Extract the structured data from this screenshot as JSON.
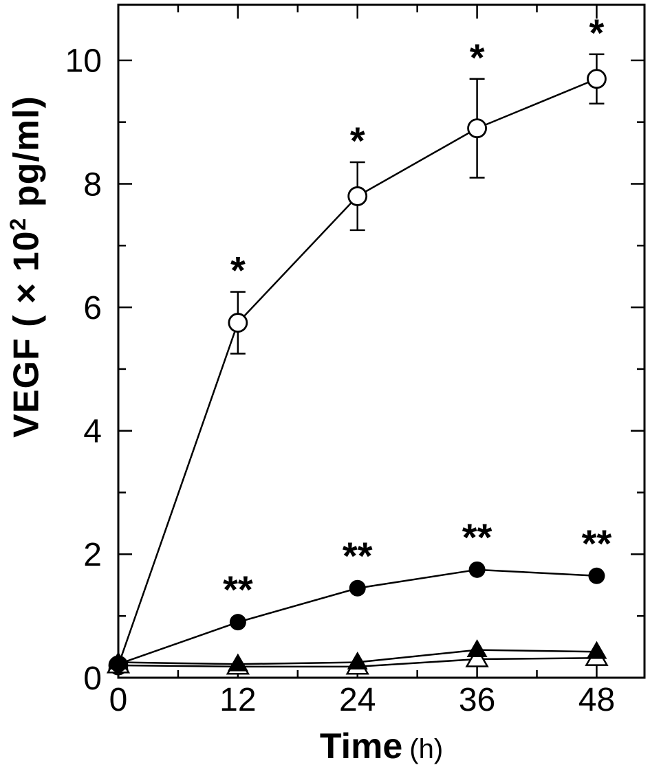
{
  "chart_data": {
    "type": "line",
    "title": "",
    "xlabel": {
      "main": "Time",
      "unit": "(h)"
    },
    "ylabel": {
      "prefix": "VEGF ( × 10",
      "sup": "2",
      "suffix": " pg/ml)"
    },
    "x": [
      0,
      12,
      24,
      36,
      48
    ],
    "xlim": [
      0,
      52.8
    ],
    "ylim": [
      0,
      10.9
    ],
    "x_ticks": [
      0,
      12,
      24,
      36,
      48
    ],
    "x_minor_ticks": [
      6,
      18,
      30,
      42
    ],
    "y_ticks": [
      0,
      2,
      4,
      6,
      8,
      10
    ],
    "y_minor_ticks": [
      1,
      3,
      5,
      7,
      9
    ],
    "grid": false,
    "legend": "none",
    "colors": {
      "line": "#000000",
      "background": "#ffffff"
    },
    "series": [
      {
        "name": "open-circle",
        "marker": "open-circle",
        "values": [
          0.2,
          5.75,
          7.8,
          8.9,
          9.7
        ],
        "errors": [
          0,
          0.5,
          0.55,
          0.8,
          0.4
        ],
        "significance": [
          "",
          "*",
          "*",
          "*",
          "*"
        ]
      },
      {
        "name": "open-triangle",
        "marker": "open-triangle",
        "values": [
          0.2,
          0.18,
          0.18,
          0.3,
          0.32
        ],
        "errors": [
          0,
          0,
          0,
          0,
          0
        ],
        "significance": [
          "",
          "",
          "",
          "",
          ""
        ]
      },
      {
        "name": "filled-triangle",
        "marker": "filled-triangle",
        "values": [
          0.25,
          0.22,
          0.25,
          0.45,
          0.42
        ],
        "errors": [
          0,
          0,
          0,
          0,
          0
        ],
        "significance": [
          "",
          "",
          "",
          "",
          ""
        ]
      },
      {
        "name": "filled-circle",
        "marker": "filled-circle",
        "values": [
          0.22,
          0.9,
          1.45,
          1.75,
          1.65
        ],
        "errors": [
          0,
          0,
          0,
          0,
          0
        ],
        "significance": [
          "",
          "**",
          "**",
          "**",
          "**"
        ]
      }
    ]
  }
}
